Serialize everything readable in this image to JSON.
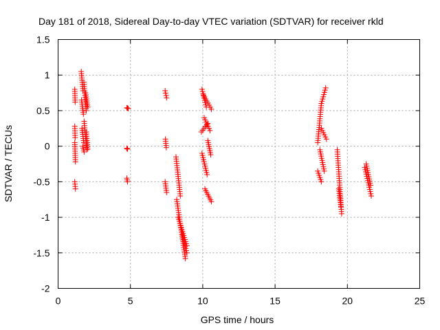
{
  "chart_data": {
    "type": "scatter",
    "title": "Day 181 of 2018, Sidereal Day-to-day VTEC variation (SDTVAR) for receiver rkld",
    "xlabel": "GPS time / hours",
    "ylabel": "SDTVAR / TECUs",
    "xlim": [
      0,
      25
    ],
    "ylim": [
      -2,
      1.5
    ],
    "xticks": [
      0,
      5,
      10,
      15,
      20,
      25
    ],
    "xtick_labels": [
      "0",
      "5",
      "10",
      "15",
      "20",
      "25"
    ],
    "yticks": [
      1.5,
      1,
      0.5,
      0,
      -0.5,
      -1,
      -1.5,
      -2
    ],
    "ytick_labels": [
      "1.5",
      "1",
      "0.5",
      "0",
      "-0.5",
      "-1",
      "-1.5",
      "-2"
    ],
    "grid": true,
    "marker": "+",
    "color": "#ff0000",
    "series": [
      {
        "name": "SDTVAR",
        "segments": [
          {
            "x": [
              1.15,
              1.18
            ],
            "y": [
              0.8,
              0.62
            ]
          },
          {
            "x": [
              1.15,
              1.18
            ],
            "y": [
              0.28,
              0.12
            ]
          },
          {
            "x": [
              1.15,
              1.2
            ],
            "y": [
              0.05,
              -0.22
            ]
          },
          {
            "x": [
              1.15,
              1.2
            ],
            "y": [
              -0.5,
              -0.6
            ]
          },
          {
            "x": [
              1.6,
              1.72
            ],
            "y": [
              1.05,
              0.78
            ]
          },
          {
            "x": [
              1.62,
              1.75
            ],
            "y": [
              0.65,
              0.45
            ]
          },
          {
            "x": [
              1.65,
              1.78
            ],
            "y": [
              0.25,
              0.05
            ]
          },
          {
            "x": [
              1.7,
              1.8
            ],
            "y": [
              0.0,
              -0.08
            ]
          },
          {
            "x": [
              1.78,
              1.95
            ],
            "y": [
              0.9,
              0.5
            ]
          },
          {
            "x": [
              1.8,
              1.98
            ],
            "y": [
              0.35,
              -0.05
            ]
          },
          {
            "x": [
              1.9,
              2.05
            ],
            "y": [
              0.75,
              0.55
            ]
          },
          {
            "x": [
              1.95,
              2.05
            ],
            "y": [
              0.2,
              -0.04
            ]
          },
          {
            "x": [
              4.75,
              4.85
            ],
            "y": [
              0.54,
              0.53
            ]
          },
          {
            "x": [
              4.75,
              4.8
            ],
            "y": [
              -0.03,
              -0.04
            ]
          },
          {
            "x": [
              4.75,
              4.8
            ],
            "y": [
              -0.45,
              -0.5
            ]
          },
          {
            "x": [
              7.4,
              7.5
            ],
            "y": [
              0.78,
              0.68
            ]
          },
          {
            "x": [
              7.42,
              7.48
            ],
            "y": [
              0.1,
              -0.02
            ]
          },
          {
            "x": [
              7.4,
              7.5
            ],
            "y": [
              -0.5,
              -0.65
            ]
          },
          {
            "x": [
              8.15,
              8.45
            ],
            "y": [
              -0.15,
              -0.7
            ]
          },
          {
            "x": [
              8.2,
              8.8
            ],
            "y": [
              -0.75,
              -1.58
            ]
          },
          {
            "x": [
              8.3,
              8.9
            ],
            "y": [
              -1.0,
              -1.4
            ]
          },
          {
            "x": [
              8.6,
              8.9
            ],
            "y": [
              -1.25,
              -1.5
            ]
          },
          {
            "x": [
              9.9,
              10.35
            ],
            "y": [
              0.2,
              0.32
            ]
          },
          {
            "x": [
              9.95,
              10.25
            ],
            "y": [
              0.8,
              0.55
            ]
          },
          {
            "x": [
              9.95,
              10.3
            ],
            "y": [
              -0.1,
              -0.4
            ]
          },
          {
            "x": [
              10.05,
              10.6
            ],
            "y": [
              0.72,
              0.52
            ]
          },
          {
            "x": [
              10.1,
              10.5
            ],
            "y": [
              0.4,
              0.22
            ]
          },
          {
            "x": [
              10.15,
              10.6
            ],
            "y": [
              -0.6,
              -0.78
            ]
          },
          {
            "x": [
              10.35,
              10.55
            ],
            "y": [
              0.08,
              -0.12
            ]
          },
          {
            "x": [
              17.95,
              18.2
            ],
            "y": [
              0.05,
              0.6
            ]
          },
          {
            "x": [
              17.95,
              18.2
            ],
            "y": [
              -0.35,
              -0.5
            ]
          },
          {
            "x": [
              18.1,
              18.4
            ],
            "y": [
              -0.05,
              -0.35
            ]
          },
          {
            "x": [
              18.2,
              18.5
            ],
            "y": [
              0.6,
              0.82
            ]
          },
          {
            "x": [
              18.2,
              18.55
            ],
            "y": [
              0.25,
              0.1
            ]
          },
          {
            "x": [
              19.3,
              19.6
            ],
            "y": [
              -0.05,
              -0.95
            ]
          },
          {
            "x": [
              19.4,
              19.55
            ],
            "y": [
              -0.6,
              -0.85
            ]
          },
          {
            "x": [
              21.2,
              21.65
            ],
            "y": [
              -0.3,
              -0.7
            ]
          },
          {
            "x": [
              21.3,
              21.6
            ],
            "y": [
              -0.25,
              -0.55
            ]
          }
        ]
      }
    ]
  }
}
